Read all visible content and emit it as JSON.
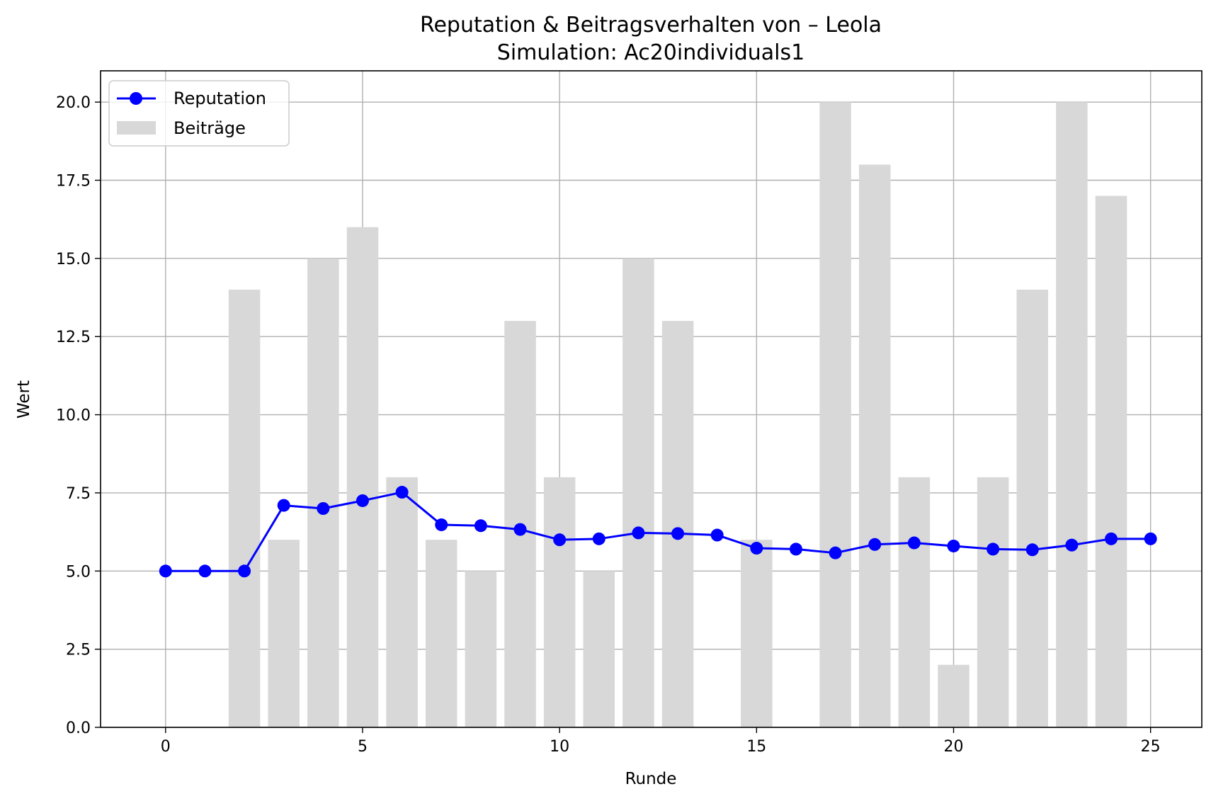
{
  "chart_data": {
    "type": "bar",
    "title": "Reputation & Beitragsverhalten von – Leola",
    "subtitle": "Simulation: Ac20individuals1",
    "xlabel": "Runde",
    "ylabel": "Wert",
    "xlim": [
      -1.65,
      26.3
    ],
    "ylim": [
      0,
      21
    ],
    "x_ticks": [
      0,
      5,
      10,
      15,
      20,
      25
    ],
    "y_ticks": [
      0.0,
      2.5,
      5.0,
      7.5,
      10.0,
      12.5,
      15.0,
      17.5,
      20.0
    ],
    "x_tick_labels": [
      "0",
      "5",
      "10",
      "15",
      "20",
      "25"
    ],
    "y_tick_labels": [
      "0.0",
      "2.5",
      "5.0",
      "7.5",
      "10.0",
      "12.5",
      "15.0",
      "17.5",
      "20.0"
    ],
    "grid": true,
    "legend_position": "top-left",
    "series": [
      {
        "name": "Reputation",
        "type": "line",
        "color": "#0000ff",
        "marker": "circle",
        "x": [
          0,
          1,
          2,
          3,
          4,
          5,
          6,
          7,
          8,
          9,
          10,
          11,
          12,
          13,
          14,
          15,
          16,
          17,
          18,
          19,
          20,
          21,
          22,
          23,
          24,
          25
        ],
        "values": [
          5.0,
          5.0,
          5.0,
          7.1,
          7.0,
          7.25,
          7.52,
          6.48,
          6.45,
          6.33,
          6.0,
          6.03,
          6.22,
          6.2,
          6.15,
          5.73,
          5.7,
          5.58,
          5.85,
          5.9,
          5.8,
          5.7,
          5.68,
          5.83,
          6.03,
          6.03
        ]
      },
      {
        "name": "Beiträge",
        "type": "bar",
        "color": "#d8d8d8",
        "x": [
          0,
          1,
          2,
          3,
          4,
          5,
          6,
          7,
          8,
          9,
          10,
          11,
          12,
          13,
          14,
          15,
          16,
          17,
          18,
          19,
          20,
          21,
          22,
          23,
          24,
          25
        ],
        "values": [
          0,
          0,
          14,
          6,
          15,
          16,
          8,
          6,
          5,
          13,
          8,
          5,
          15,
          13,
          0,
          6,
          0,
          20,
          18,
          8,
          2,
          8,
          14,
          20,
          17,
          0
        ]
      }
    ]
  }
}
